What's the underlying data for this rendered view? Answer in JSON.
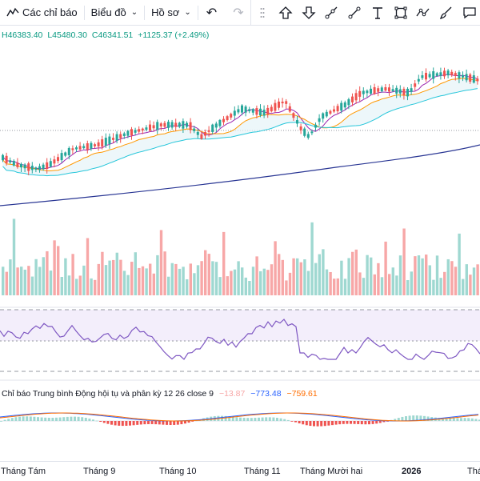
{
  "toolbar": {
    "indicators_label": "Các chỉ báo",
    "chart_type_label": "Biểu đồ",
    "profile_label": "Hồ sơ",
    "undo_icon": "undo-icon",
    "redo_icon": "redo-icon"
  },
  "drawing_tools": [
    "arrow-up-icon",
    "arrow-down-icon",
    "ray-line-icon",
    "trend-line-icon",
    "text-icon",
    "rectangle-icon",
    "path-icon",
    "brush-icon",
    "callout-icon"
  ],
  "ohlc": {
    "high": "H46383.40",
    "low": "L45480.30",
    "close": "C46341.51",
    "change": "+1125.37 (+2.49%)"
  },
  "macd": {
    "label": "Chỉ báo Trung bình Động hội tụ và phân kỳ",
    "params": "12 26 close 9",
    "histogram": "−13.87",
    "macd": "−773.48",
    "signal": "−759.61"
  },
  "x_axis": [
    "Tháng Tám",
    "Tháng 9",
    "Tháng 10",
    "Tháng 11",
    "Tháng Mười hai",
    "2026",
    "Tháng"
  ],
  "colors": {
    "up": "#26a69a",
    "down": "#ef5350",
    "up_volume": "#9fd8d1",
    "down_volume": "#f7a7a7",
    "rsi": "#7e57c2",
    "ma_fast": "#9c27b0",
    "ma_mid": "#ff9800",
    "ma_slow": "#26c6da",
    "ma_long": "#283593"
  },
  "chart_data": {
    "type": "candlestick",
    "title": "",
    "panes": [
      "price",
      "volume",
      "rsi",
      "macd"
    ],
    "x_labels": [
      "Tháng Tám",
      "Tháng 9",
      "Tháng 10",
      "Tháng 11",
      "Tháng Mười hai",
      "2026",
      "Tháng"
    ],
    "last_bar": {
      "open": "",
      "high": 46383.4,
      "low": 45480.3,
      "close": 46341.51,
      "change": 1125.37,
      "change_pct": 2.49
    },
    "macd": {
      "fast": 12,
      "slow": 26,
      "source": "close",
      "signal_length": 9,
      "histogram": -13.87,
      "macd": -773.48,
      "signal": -759.61
    }
  }
}
